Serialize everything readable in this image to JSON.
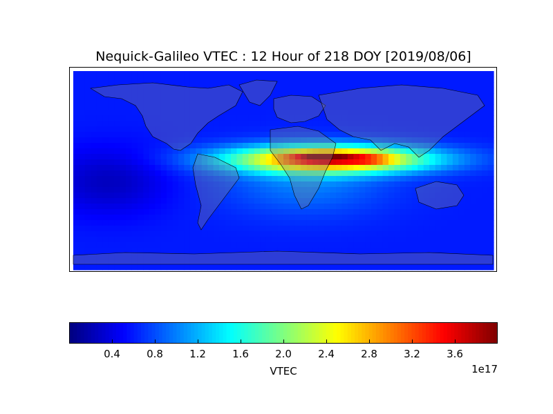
{
  "title": "Nequick-Galileo VTEC : 12 Hour of 218 DOY [2019/08/06]",
  "colorbar": {
    "label": "VTEC",
    "exponent": "1e17",
    "colormap": "jet",
    "range": [
      0.0,
      4.0
    ],
    "ticks": [
      "0.4",
      "0.8",
      "1.2",
      "1.6",
      "2.0",
      "2.4",
      "2.8",
      "3.2",
      "3.6"
    ]
  },
  "map": {
    "projection": "equirectangular",
    "lon_range": [
      -180,
      180
    ],
    "lat_range": [
      -90,
      90
    ],
    "overlay": "coastlines and country borders",
    "land_shading": "translucent gray"
  },
  "chart_data": {
    "type": "heatmap",
    "title": "Nequick-Galileo VTEC : 12 Hour of 218 DOY [2019/08/06]",
    "value_scale": "1e17",
    "peak": {
      "lon": 35,
      "lat": 12,
      "value": 3.9
    },
    "secondary_max": {
      "lon": 75,
      "lat": 10,
      "value": 3.5
    },
    "equatorial_band": {
      "lon_range": [
        -40,
        120
      ],
      "lat_range": [
        -10,
        25
      ],
      "value_range": [
        2.0,
        3.9
      ]
    },
    "background_value": 0.6,
    "minimum_region": {
      "lon": -150,
      "lat": -10,
      "value": 0.2
    }
  }
}
